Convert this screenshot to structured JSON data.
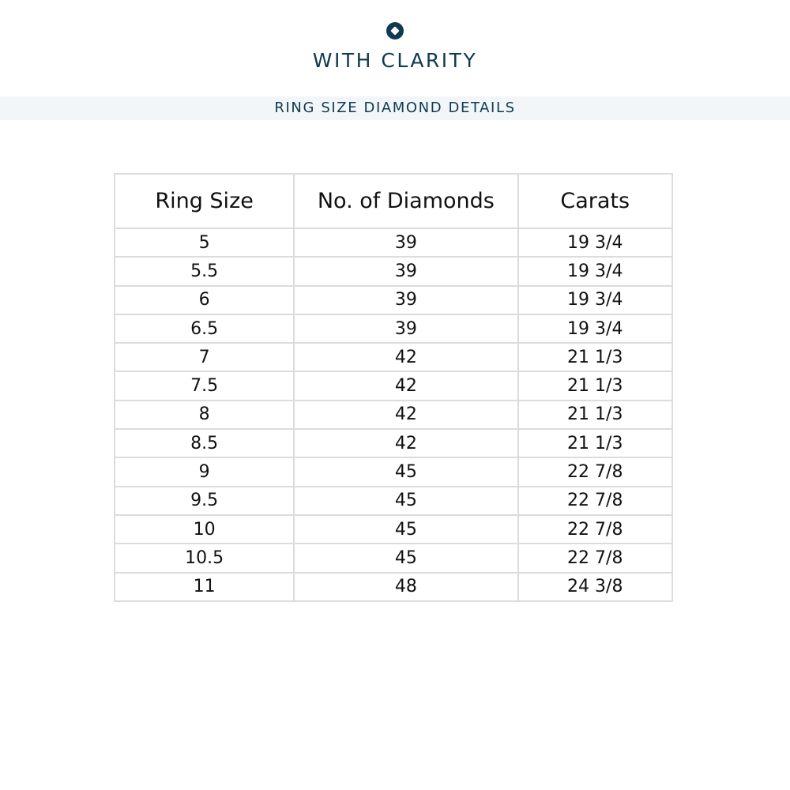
{
  "brand": {
    "name": "WITH CLARITY",
    "logo_icon": "diamond-circle-icon",
    "color": "#0f3a4f"
  },
  "banner": {
    "title": "RING SIZE DIAMOND DETAILS"
  },
  "table": {
    "headers": [
      "Ring Size",
      "No. of Diamonds",
      "Carats"
    ],
    "rows": [
      [
        "5",
        "39",
        "19 3/4"
      ],
      [
        "5.5",
        "39",
        "19 3/4"
      ],
      [
        "6",
        "39",
        "19 3/4"
      ],
      [
        "6.5",
        "39",
        "19 3/4"
      ],
      [
        "7",
        "42",
        "21 1/3"
      ],
      [
        "7.5",
        "42",
        "21 1/3"
      ],
      [
        "8",
        "42",
        "21 1/3"
      ],
      [
        "8.5",
        "42",
        "21 1/3"
      ],
      [
        "9",
        "45",
        "22 7/8"
      ],
      [
        "9.5",
        "45",
        "22 7/8"
      ],
      [
        "10",
        "45",
        "22 7/8"
      ],
      [
        "10.5",
        "45",
        "22 7/8"
      ],
      [
        "11",
        "48",
        "24 3/8"
      ]
    ]
  }
}
